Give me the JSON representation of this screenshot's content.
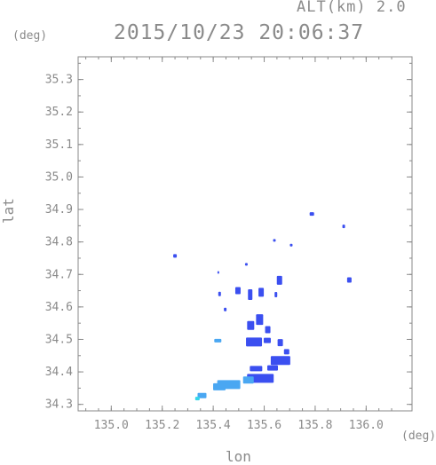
{
  "header": {
    "altitude": "ALT(km) 2.0",
    "timestamp": "2015/10/23 20:06:37"
  },
  "axes": {
    "x_label": "lon",
    "y_label": "lat",
    "x_unit": "(deg)",
    "y_unit": "(deg)",
    "x_ticks": [
      "135.0",
      "135.2",
      "135.4",
      "135.6",
      "135.8",
      "136.0"
    ],
    "y_ticks": [
      "34.3",
      "34.4",
      "34.5",
      "34.6",
      "34.7",
      "34.8",
      "34.9",
      "35.0",
      "35.1",
      "35.2",
      "35.3"
    ]
  },
  "chart_data": {
    "type": "scatter",
    "xlabel": "lon",
    "ylabel": "lat",
    "xlim": [
      134.87,
      136.18
    ],
    "ylim": [
      34.28,
      35.37
    ],
    "colors": {
      "echo_blue": "#3b4ff0",
      "echo_light": "#4aa7f2",
      "echo_cyan": "#33d6ea",
      "frame": "#8a8a8a"
    },
    "cells": [
      {
        "lon": 135.787,
        "lat": 34.886,
        "c": "echo_blue"
      },
      {
        "lon": 135.912,
        "lat": 34.848,
        "c": "echo_blue"
      },
      {
        "lon": 135.64,
        "lat": 34.805,
        "c": "echo_blue"
      },
      {
        "lon": 135.706,
        "lat": 34.79,
        "c": "echo_blue"
      },
      {
        "lon": 135.25,
        "lat": 34.757,
        "c": "echo_blue"
      },
      {
        "lon": 135.53,
        "lat": 34.731,
        "c": "echo_blue"
      },
      {
        "lon": 135.934,
        "lat": 34.683,
        "c": "echo_blue"
      },
      {
        "lon": 135.66,
        "lat": 34.682,
        "c": "echo_blue"
      },
      {
        "lon": 135.42,
        "lat": 34.706,
        "c": "echo_blue"
      },
      {
        "lon": 135.497,
        "lat": 34.65,
        "c": "echo_blue"
      },
      {
        "lon": 135.545,
        "lat": 34.638,
        "c": "echo_blue"
      },
      {
        "lon": 135.588,
        "lat": 34.645,
        "c": "echo_blue"
      },
      {
        "lon": 135.646,
        "lat": 34.638,
        "c": "echo_blue"
      },
      {
        "lon": 135.425,
        "lat": 34.64,
        "c": "echo_blue"
      },
      {
        "lon": 135.582,
        "lat": 34.561,
        "c": "echo_blue"
      },
      {
        "lon": 135.547,
        "lat": 34.543,
        "c": "echo_blue"
      },
      {
        "lon": 135.614,
        "lat": 34.53,
        "c": "echo_blue"
      },
      {
        "lon": 135.447,
        "lat": 34.592,
        "c": "echo_blue"
      },
      {
        "lon": 135.56,
        "lat": 34.492,
        "c": "echo_blue"
      },
      {
        "lon": 135.612,
        "lat": 34.497,
        "c": "echo_blue"
      },
      {
        "lon": 135.663,
        "lat": 34.49,
        "c": "echo_blue"
      },
      {
        "lon": 135.688,
        "lat": 34.462,
        "c": "echo_blue"
      },
      {
        "lon": 135.418,
        "lat": 34.496,
        "c": "echo_light"
      },
      {
        "lon": 135.664,
        "lat": 34.435,
        "c": "echo_blue"
      },
      {
        "lon": 135.633,
        "lat": 34.412,
        "c": "echo_blue"
      },
      {
        "lon": 135.568,
        "lat": 34.41,
        "c": "echo_blue"
      },
      {
        "lon": 135.585,
        "lat": 34.38,
        "c": "echo_blue"
      },
      {
        "lon": 135.538,
        "lat": 34.375,
        "c": "echo_light"
      },
      {
        "lon": 135.461,
        "lat": 34.361,
        "c": "echo_light"
      },
      {
        "lon": 135.424,
        "lat": 34.354,
        "c": "echo_light"
      },
      {
        "lon": 135.356,
        "lat": 34.327,
        "c": "echo_light"
      },
      {
        "lon": 135.338,
        "lat": 34.318,
        "c": "echo_cyan"
      }
    ]
  }
}
